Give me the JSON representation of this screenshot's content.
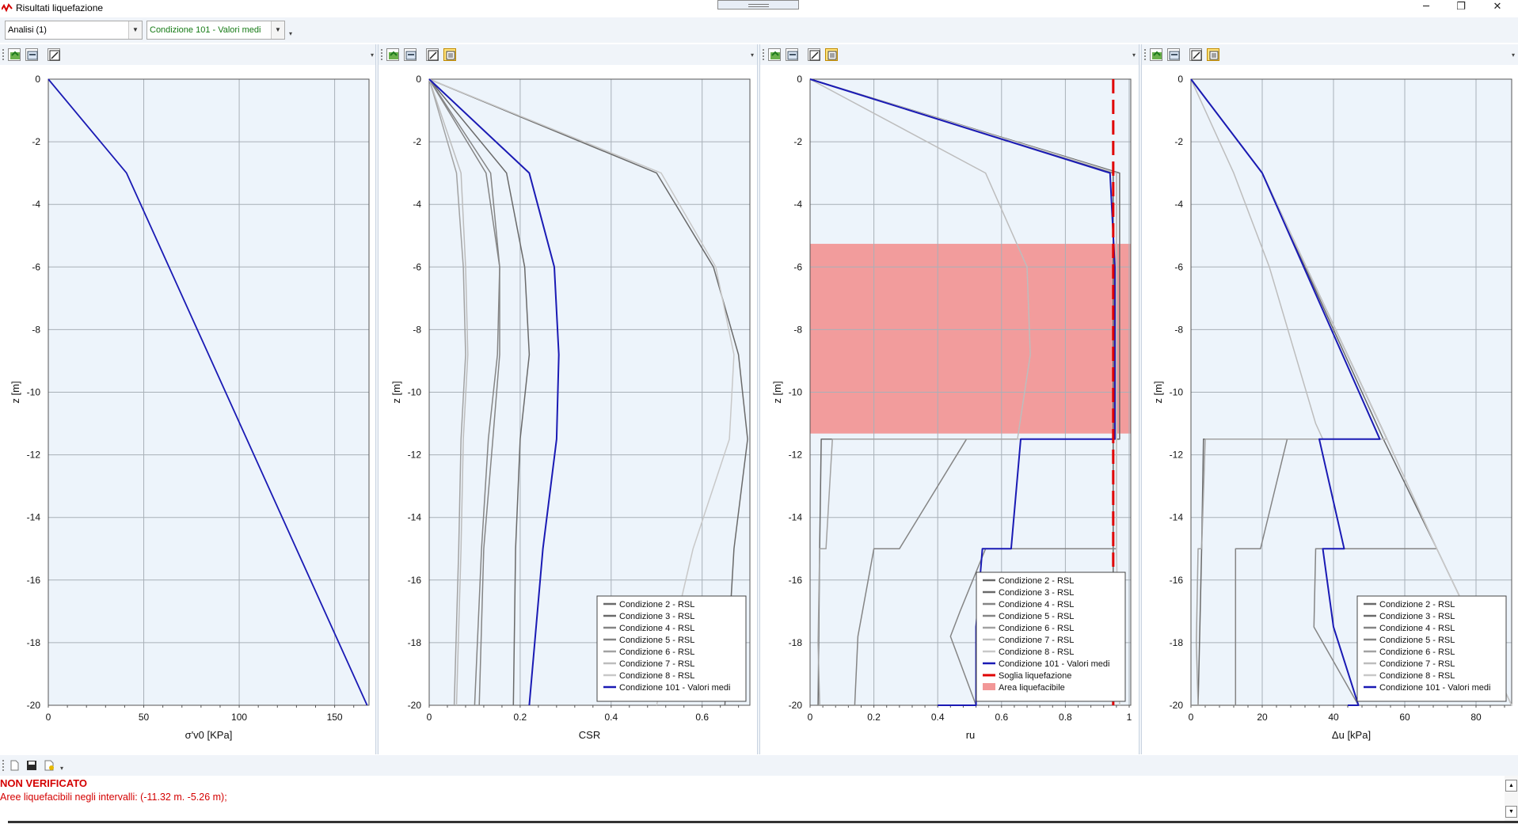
{
  "window": {
    "title": "Risultati liquefazione",
    "min_glyph": "─",
    "max_glyph": "❐",
    "close_glyph": "✕"
  },
  "toolbar": {
    "analysis_select": "Analisi (1)",
    "condition_select": "Condizione 101 - Valori medi"
  },
  "colors": {
    "plot_bg": "#edf4fb",
    "grid": "#a8b0b8",
    "blue": "#1a1ab4",
    "red": "#e00000",
    "area": "#f29797"
  },
  "chart_data": [
    {
      "type": "line",
      "xlabel": "σ'v0 [KPa]",
      "ylabel": "z [m]",
      "xlim": [
        0,
        168
      ],
      "ylim": [
        -20,
        0
      ],
      "xticks": [
        0,
        50,
        100,
        150
      ],
      "xtick_labels": [
        "0",
        "50",
        "100",
        "150"
      ],
      "yticks": [
        0,
        -2,
        -4,
        -6,
        -8,
        -10,
        -12,
        -14,
        -16,
        -18,
        -20
      ],
      "ytick_labels": [
        "0",
        "-2",
        "-4",
        "-6",
        "-8",
        "-10",
        "-12",
        "-14",
        "-16",
        "-18",
        "-20"
      ],
      "grid": true,
      "legend": "none",
      "series": [
        {
          "color": "#1a1ab4",
          "width": 1.8,
          "points": [
            [
              0,
              0
            ],
            [
              41,
              -3
            ],
            [
              167,
              -20
            ]
          ]
        }
      ]
    },
    {
      "type": "line",
      "xlabel": "CSR",
      "ylabel": "z [m]",
      "xlim": [
        0,
        0.705
      ],
      "ylim": [
        -20,
        0
      ],
      "xticks": [
        0,
        0.2,
        0.4,
        0.6
      ],
      "xtick_labels": [
        "0",
        "0.2",
        "0.4",
        "0.6"
      ],
      "yticks": [
        0,
        -2,
        -4,
        -6,
        -8,
        -10,
        -12,
        -14,
        -16,
        -18,
        -20
      ],
      "ytick_labels": [
        "0",
        "-2",
        "-4",
        "-6",
        "-8",
        "-10",
        "-12",
        "-14",
        "-16",
        "-18",
        "-20"
      ],
      "grid": true,
      "legend": "bottom-right",
      "series": [
        {
          "name": "Condizione 2 - RSL",
          "color": "#6a6a6a",
          "width": 1.5,
          "points": [
            [
              0,
              0
            ],
            [
              0.5,
              -3
            ],
            [
              0.625,
              -6
            ],
            [
              0.68,
              -8.8
            ],
            [
              0.7,
              -11.5
            ],
            [
              0.67,
              -15
            ],
            [
              0.65,
              -20
            ]
          ]
        },
        {
          "name": "Condizione 3 - RSL",
          "color": "#6a6a6a",
          "width": 1.5,
          "points": [
            [
              0,
              0
            ],
            [
              0.17,
              -3
            ],
            [
              0.21,
              -6
            ],
            [
              0.22,
              -8.8
            ],
            [
              0.2,
              -11.5
            ],
            [
              0.19,
              -15
            ],
            [
              0.185,
              -20
            ]
          ]
        },
        {
          "name": "Condizione 4 - RSL",
          "color": "#858585",
          "width": 1.5,
          "points": [
            [
              0,
              0
            ],
            [
              0.125,
              -3
            ],
            [
              0.155,
              -6
            ],
            [
              0.15,
              -8.8
            ],
            [
              0.13,
              -11.5
            ],
            [
              0.115,
              -15
            ],
            [
              0.1,
              -20
            ]
          ]
        },
        {
          "name": "Condizione 5 - RSL",
          "color": "#858585",
          "width": 1.5,
          "points": [
            [
              0,
              0
            ],
            [
              0.135,
              -3
            ],
            [
              0.155,
              -6
            ],
            [
              0.155,
              -8.8
            ],
            [
              0.14,
              -11.5
            ],
            [
              0.12,
              -15
            ],
            [
              0.11,
              -20
            ]
          ]
        },
        {
          "name": "Condizione 6 - RSL",
          "color": "#a2a2a2",
          "width": 1.5,
          "points": [
            [
              0,
              0
            ],
            [
              0.06,
              -3
            ],
            [
              0.075,
              -6
            ],
            [
              0.08,
              -8.8
            ],
            [
              0.07,
              -11.5
            ],
            [
              0.065,
              -15
            ],
            [
              0.055,
              -20
            ]
          ]
        },
        {
          "name": "Condizione 7 - RSL",
          "color": "#bdbdbd",
          "width": 1.5,
          "points": [
            [
              0,
              0
            ],
            [
              0.07,
              -3
            ],
            [
              0.08,
              -6
            ],
            [
              0.085,
              -8.8
            ],
            [
              0.075,
              -11.5
            ],
            [
              0.07,
              -15
            ],
            [
              0.06,
              -20
            ]
          ]
        },
        {
          "name": "Condizione 8 - RSL",
          "color": "#c8c8c8",
          "width": 1.5,
          "points": [
            [
              0,
              0
            ],
            [
              0.51,
              -3
            ],
            [
              0.63,
              -6
            ],
            [
              0.67,
              -8.8
            ],
            [
              0.66,
              -11.5
            ],
            [
              0.58,
              -15
            ],
            [
              0.5,
              -20
            ]
          ]
        },
        {
          "name": "Condizione 101 - Valori medi",
          "color": "#1a1ab4",
          "width": 2,
          "points": [
            [
              0,
              0
            ],
            [
              0.22,
              -3
            ],
            [
              0.275,
              -6
            ],
            [
              0.285,
              -8.8
            ],
            [
              0.28,
              -11.5
            ],
            [
              0.25,
              -15
            ],
            [
              0.22,
              -20
            ]
          ]
        }
      ]
    },
    {
      "type": "line",
      "xlabel": "ru",
      "ylabel": "z [m]",
      "xlim": [
        0,
        1.005
      ],
      "ylim": [
        -20,
        0
      ],
      "xticks": [
        0,
        0.2,
        0.4,
        0.6,
        0.8,
        1
      ],
      "xtick_labels": [
        "0",
        "0.2",
        "0.4",
        "0.6",
        "0.8",
        "1"
      ],
      "yticks": [
        0,
        -2,
        -4,
        -6,
        -8,
        -10,
        -12,
        -14,
        -16,
        -18,
        -20
      ],
      "ytick_labels": [
        "0",
        "-2",
        "-4",
        "-6",
        "-8",
        "-10",
        "-12",
        "-14",
        "-16",
        "-18",
        "-20"
      ],
      "grid": true,
      "legend": "bottom-right",
      "area": {
        "name": "Area liquefacibile",
        "color": "#f29797",
        "y_from": -11.32,
        "y_to": -5.26
      },
      "threshold": {
        "name": "Soglia liquefazione",
        "color": "#e00000",
        "x": 0.95
      },
      "series": [
        {
          "name": "Condizione 2 - RSL",
          "color": "#6a6a6a",
          "width": 1.5,
          "points": [
            [
              0,
              0
            ],
            [
              0.95,
              -3
            ],
            [
              0.95,
              -11.5
            ],
            [
              0.95,
              -15
            ],
            [
              0.95,
              -20
            ]
          ]
        },
        {
          "name": "Condizione 3 - RSL",
          "color": "#6a6a6a",
          "width": 1.5,
          "points": [
            [
              0,
              0
            ],
            [
              0.97,
              -3
            ],
            [
              0.97,
              -11.5
            ],
            [
              0.035,
              -11.5
            ],
            [
              0.03,
              -15
            ],
            [
              0.025,
              -20
            ]
          ]
        },
        {
          "name": "Condizione 4 - RSL",
          "color": "#858585",
          "width": 1.5,
          "points": [
            [
              0,
              0
            ],
            [
              0.96,
              -3
            ],
            [
              0.96,
              -11.5
            ],
            [
              0.49,
              -11.5
            ],
            [
              0.28,
              -15
            ],
            [
              0.2,
              -15
            ],
            [
              0.15,
              -17.8
            ],
            [
              0.14,
              -20
            ],
            [
              0.02,
              -20
            ]
          ]
        },
        {
          "name": "Condizione 5 - RSL",
          "color": "#858585",
          "width": 1.5,
          "points": [
            [
              0,
              0
            ],
            [
              0.96,
              -3
            ],
            [
              0.96,
              -11.5
            ],
            [
              0.96,
              -15
            ],
            [
              0.55,
              -15
            ],
            [
              0.47,
              -17
            ],
            [
              0.44,
              -17.8
            ],
            [
              0.52,
              -20
            ]
          ]
        },
        {
          "name": "Condizione 6 - RSL",
          "color": "#a2a2a2",
          "width": 1.5,
          "points": [
            [
              0,
              0
            ],
            [
              0.96,
              -3
            ],
            [
              0.96,
              -11.5
            ],
            [
              0.07,
              -11.5
            ],
            [
              0.05,
              -15
            ],
            [
              0.03,
              -15
            ],
            [
              0.025,
              -18
            ],
            [
              0.03,
              -20
            ]
          ]
        },
        {
          "name": "Condizione 7 - RSL",
          "color": "#bdbdbd",
          "width": 1.5,
          "points": [
            [
              0,
              0
            ],
            [
              0.55,
              -3
            ],
            [
              0.68,
              -6
            ],
            [
              0.69,
              -8.8
            ],
            [
              0.65,
              -11.5
            ],
            [
              0.96,
              -11.5
            ],
            [
              0.96,
              -15
            ],
            [
              0.97,
              -20
            ]
          ]
        },
        {
          "name": "Condizione 8 - RSL",
          "color": "#c8c8c8",
          "width": 1.5,
          "points": [
            [
              0,
              0
            ],
            [
              0.96,
              -3
            ],
            [
              0.96,
              -11.5
            ],
            [
              0.96,
              -15
            ],
            [
              0.97,
              -20
            ]
          ]
        },
        {
          "name": "Condizione 101 - Valori medi",
          "color": "#1a1ab4",
          "width": 2,
          "points": [
            [
              0,
              0
            ],
            [
              0.94,
              -3
            ],
            [
              0.955,
              -6
            ],
            [
              0.955,
              -8.8
            ],
            [
              0.955,
              -11.5
            ],
            [
              0.66,
              -11.5
            ],
            [
              0.63,
              -15
            ],
            [
              0.54,
              -15
            ],
            [
              0.52,
              -17.5
            ],
            [
              0.52,
              -20
            ],
            [
              0.4,
              -20
            ]
          ]
        }
      ]
    },
    {
      "type": "line",
      "xlabel": "Δu [kPa]",
      "ylabel": "z [m]",
      "xlim": [
        0,
        90
      ],
      "ylim": [
        -20,
        0
      ],
      "xticks": [
        0,
        20,
        40,
        60,
        80
      ],
      "xtick_labels": [
        "0",
        "20",
        "40",
        "60",
        "80"
      ],
      "yticks": [
        0,
        -2,
        -4,
        -6,
        -8,
        -10,
        -12,
        -14,
        -16,
        -18,
        -20
      ],
      "ytick_labels": [
        "0",
        "-2",
        "-4",
        "-6",
        "-8",
        "-10",
        "-12",
        "-14",
        "-16",
        "-18",
        "-20"
      ],
      "grid": true,
      "legend": "bottom-right",
      "series": [
        {
          "name": "Condizione 2 - RSL",
          "color": "#6a6a6a",
          "width": 1.5,
          "points": [
            [
              0,
              0
            ],
            [
              20,
              -3
            ],
            [
              54,
              -11.5
            ],
            [
              69,
              -15
            ],
            [
              90,
              -20
            ]
          ]
        },
        {
          "name": "Condizione 3 - RSL",
          "color": "#6a6a6a",
          "width": 1.5,
          "points": [
            [
              0,
              0
            ],
            [
              20,
              -3
            ],
            [
              55,
              -11.5
            ],
            [
              3.5,
              -11.5
            ],
            [
              3,
              -15
            ],
            [
              2,
              -20
            ]
          ]
        },
        {
          "name": "Condizione 4 - RSL",
          "color": "#858585",
          "width": 1.5,
          "points": [
            [
              0,
              0
            ],
            [
              20,
              -3
            ],
            [
              55,
              -11.5
            ],
            [
              27,
              -11.5
            ],
            [
              19.5,
              -15
            ],
            [
              12.5,
              -15
            ],
            [
              12.5,
              -20
            ],
            [
              0,
              -20
            ]
          ]
        },
        {
          "name": "Condizione 5 - RSL",
          "color": "#858585",
          "width": 1.5,
          "points": [
            [
              0,
              0
            ],
            [
              20,
              -3
            ],
            [
              55,
              -11.5
            ],
            [
              69,
              -15
            ],
            [
              35,
              -15
            ],
            [
              34.5,
              -17.5
            ],
            [
              47,
              -20
            ]
          ]
        },
        {
          "name": "Condizione 6 - RSL",
          "color": "#a2a2a2",
          "width": 1.5,
          "points": [
            [
              0,
              0
            ],
            [
              20,
              -3
            ],
            [
              55,
              -11.5
            ],
            [
              4,
              -11.5
            ],
            [
              3,
              -15
            ],
            [
              2,
              -15
            ],
            [
              1.5,
              -18
            ],
            [
              2,
              -20
            ]
          ]
        },
        {
          "name": "Condizione 7 - RSL",
          "color": "#bdbdbd",
          "width": 1.5,
          "points": [
            [
              0,
              0
            ],
            [
              12,
              -3
            ],
            [
              22,
              -6
            ],
            [
              35,
              -11
            ],
            [
              37,
              -11.5
            ],
            [
              55,
              -11.5
            ],
            [
              69,
              -15
            ],
            [
              90,
              -20
            ]
          ]
        },
        {
          "name": "Condizione 8 - RSL",
          "color": "#c8c8c8",
          "width": 1.5,
          "points": [
            [
              0,
              0
            ],
            [
              20,
              -3
            ],
            [
              55,
              -11.5
            ],
            [
              69,
              -15
            ],
            [
              90,
              -20
            ]
          ]
        },
        {
          "name": "Condizione 101 - Valori medi",
          "color": "#1a1ab4",
          "width": 2,
          "points": [
            [
              0,
              0
            ],
            [
              20,
              -3
            ],
            [
              53,
              -11.5
            ],
            [
              36,
              -11.5
            ],
            [
              43,
              -15
            ],
            [
              37,
              -15
            ],
            [
              40,
              -17.5
            ],
            [
              47,
              -20
            ],
            [
              44,
              -20
            ]
          ]
        }
      ]
    }
  ],
  "legend_extra": {
    "threshold_label": "Soglia liquefazione",
    "area_label": "Area liquefacibile"
  },
  "status": {
    "verdict": "NON VERIFICATO",
    "detail": "Aree liquefacibili negli intervalli: (-11.32 m. -5.26 m);"
  }
}
